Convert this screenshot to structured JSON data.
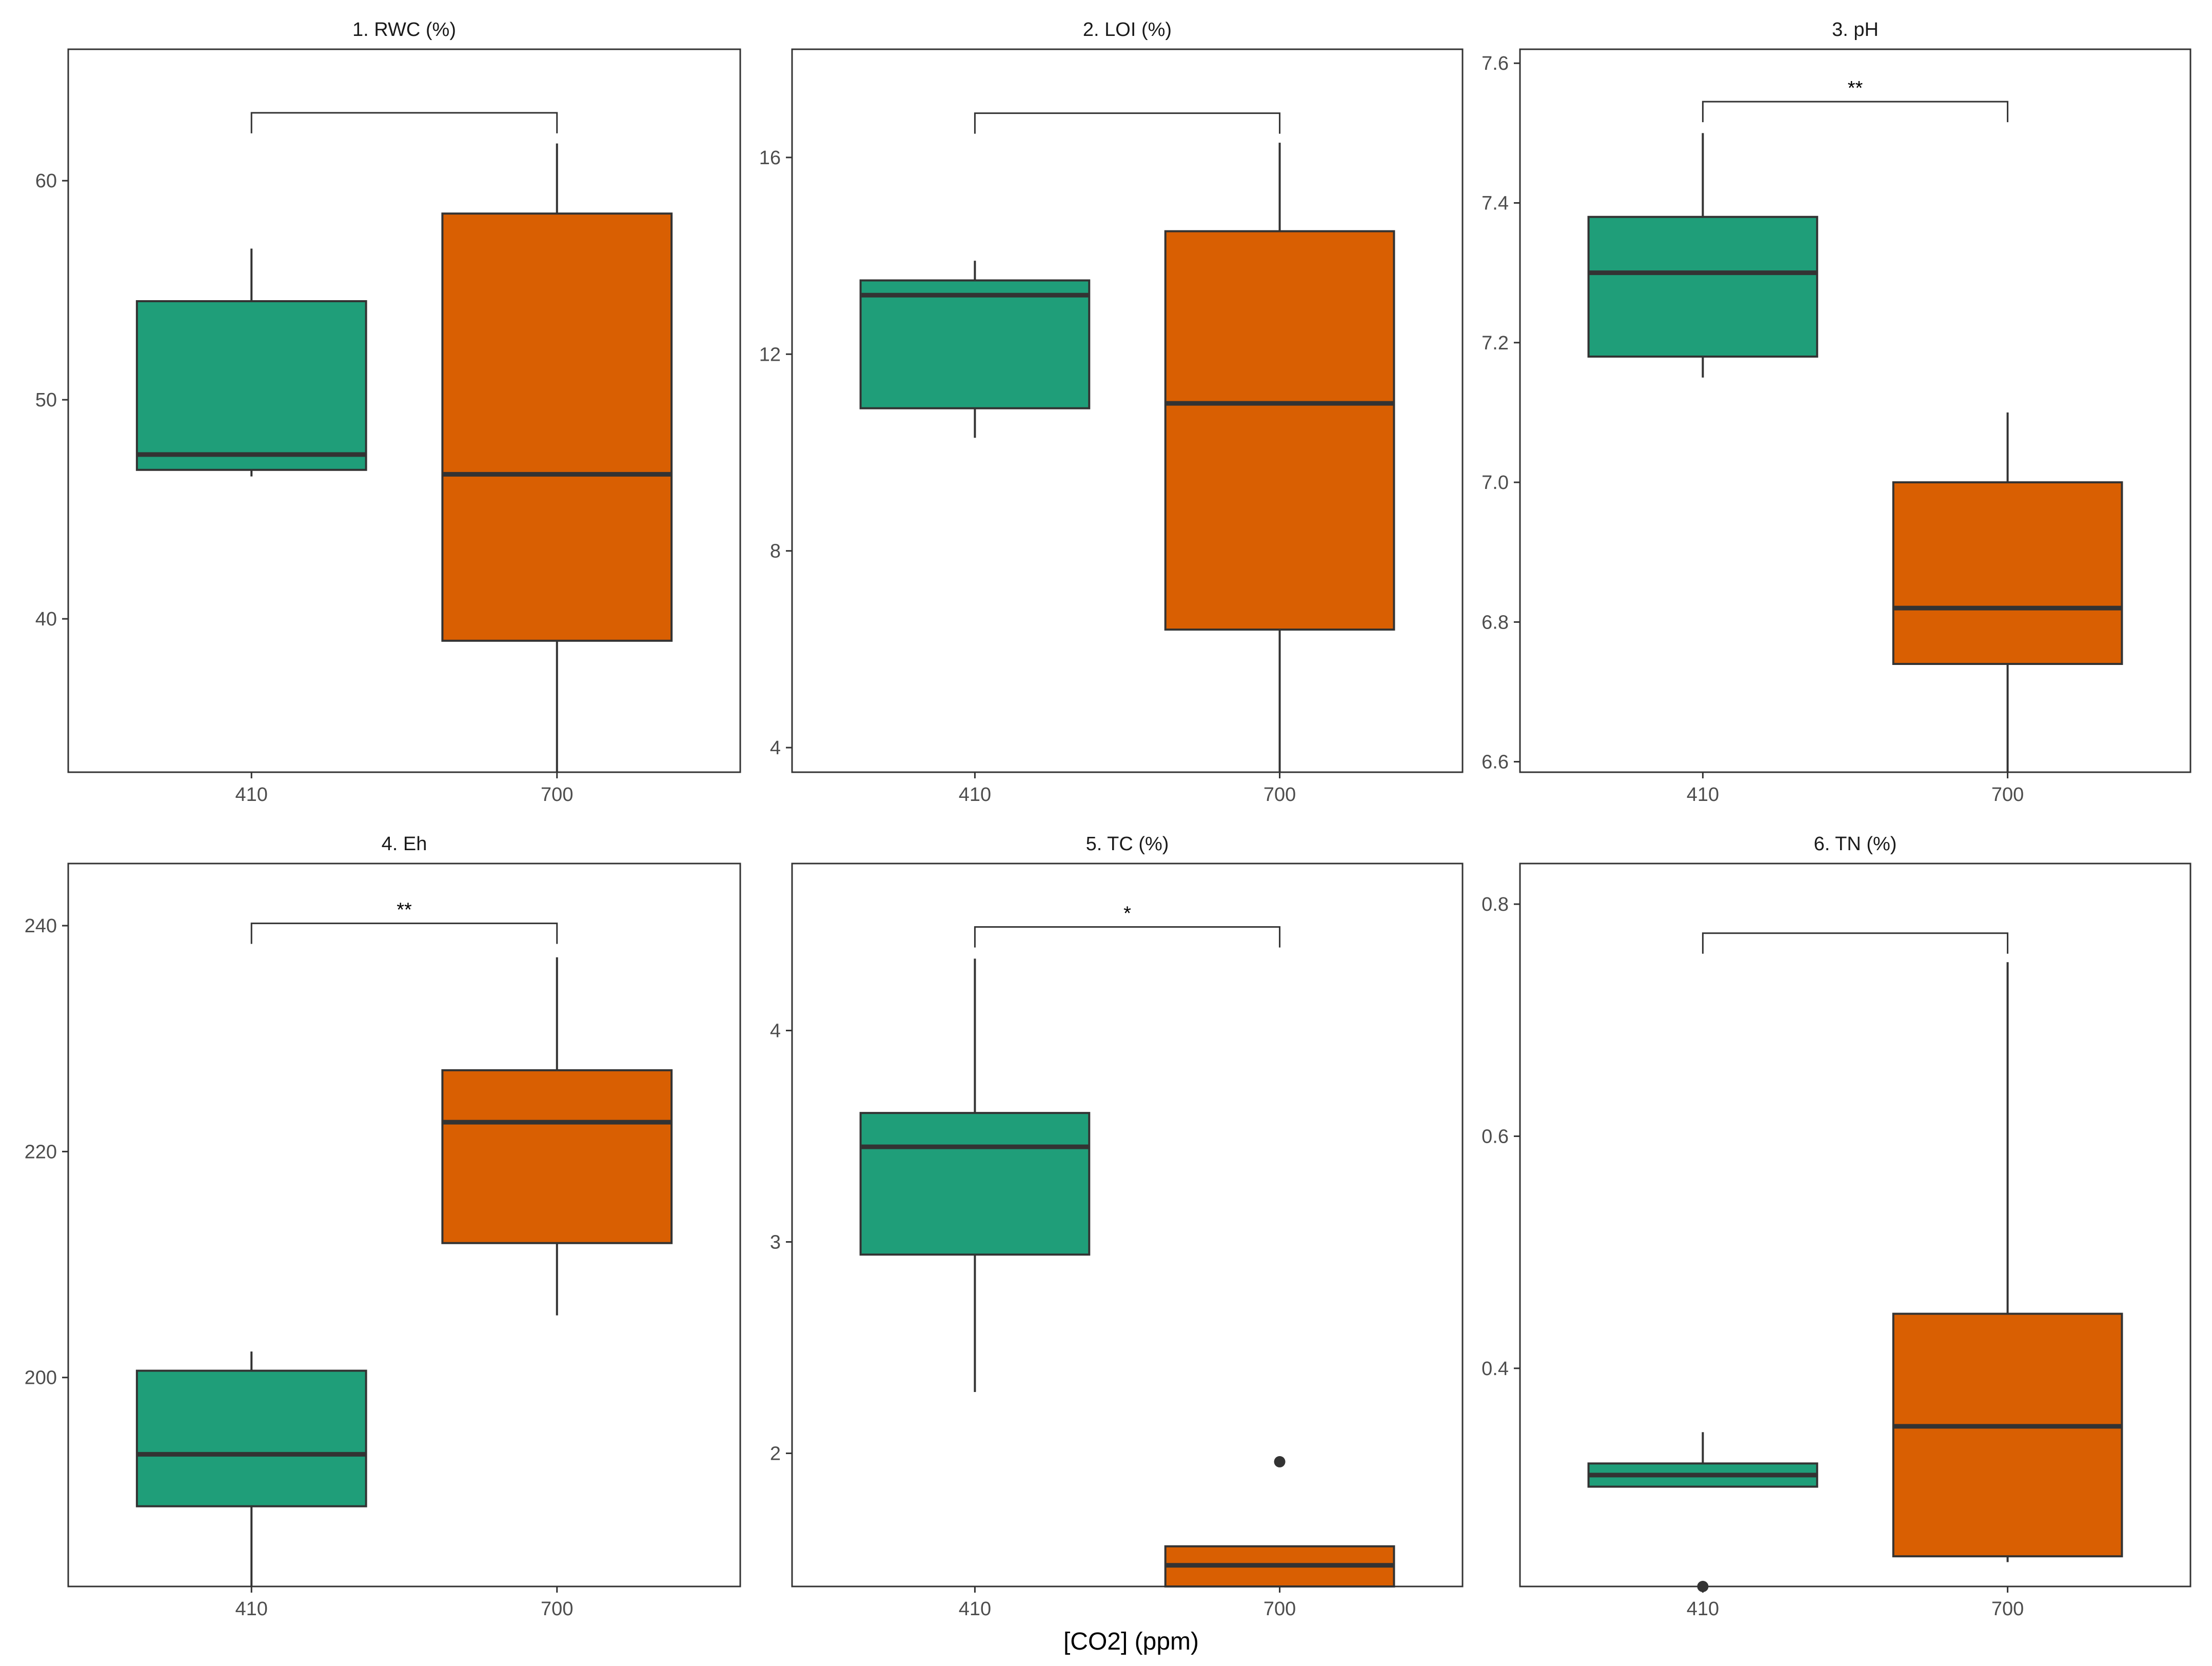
{
  "figure": {
    "xlabel": "[CO2] (ppm)",
    "colors": {
      "410": "#1f9e79",
      "700": "#d95f02",
      "line": "#333333",
      "axis": "#4d4d4d",
      "frame": "#333333"
    }
  },
  "chart_data": [
    {
      "type": "box",
      "title": "1. RWC (%)",
      "categories": [
        "410",
        "700"
      ],
      "ylim": [
        33,
        66
      ],
      "yticks": [
        40,
        50,
        60
      ],
      "ytick_labels": [
        "40",
        "50",
        "60"
      ],
      "boxes": [
        {
          "group": "410",
          "whisker_low": 46.5,
          "q1": 46.8,
          "median": 47.5,
          "q3": 54.5,
          "whisker_high": 56.9,
          "outliers": []
        },
        {
          "group": "700",
          "whisker_low": 33,
          "q1": 39,
          "median": 46.6,
          "q3": 58.5,
          "whisker_high": 61.7,
          "outliers": []
        }
      ],
      "bracket": {
        "y": 63.1,
        "label": ""
      }
    },
    {
      "type": "box",
      "title": "2. LOI (%)",
      "categories": [
        "410",
        "700"
      ],
      "ylim": [
        3.5,
        18.2
      ],
      "yticks": [
        4,
        8,
        12,
        16
      ],
      "ytick_labels": [
        "4",
        "8",
        "12",
        "16"
      ],
      "boxes": [
        {
          "group": "410",
          "whisker_low": 10.3,
          "q1": 10.9,
          "median": 13.2,
          "q3": 13.5,
          "whisker_high": 13.9,
          "outliers": []
        },
        {
          "group": "700",
          "whisker_low": 3.5,
          "q1": 6.4,
          "median": 11.0,
          "q3": 14.5,
          "whisker_high": 16.3,
          "outliers": []
        }
      ],
      "bracket": {
        "y": 16.9,
        "label": ""
      }
    },
    {
      "type": "box",
      "title": "3. pH",
      "categories": [
        "410",
        "700"
      ],
      "ylim": [
        6.585,
        7.62
      ],
      "yticks": [
        6.6,
        6.8,
        7.0,
        7.2,
        7.4,
        7.6
      ],
      "ytick_labels": [
        "6.6",
        "6.8",
        "7.0",
        "7.2",
        "7.4",
        "7.6"
      ],
      "boxes": [
        {
          "group": "410",
          "whisker_low": 7.15,
          "q1": 7.18,
          "median": 7.3,
          "q3": 7.38,
          "whisker_high": 7.5,
          "outliers": []
        },
        {
          "group": "700",
          "whisker_low": 6.585,
          "q1": 6.74,
          "median": 6.82,
          "q3": 7.0,
          "whisker_high": 7.1,
          "outliers": []
        }
      ],
      "bracket": {
        "y": 7.545,
        "label": "**"
      }
    },
    {
      "type": "box",
      "title": "4. Eh",
      "categories": [
        "410",
        "700"
      ],
      "ylim": [
        181.5,
        245.5
      ],
      "yticks": [
        200,
        220,
        240
      ],
      "ytick_labels": [
        "200",
        "220",
        "240"
      ],
      "boxes": [
        {
          "group": "410",
          "whisker_low": 181.5,
          "q1": 188.6,
          "median": 193.2,
          "q3": 200.6,
          "whisker_high": 202.3,
          "outliers": []
        },
        {
          "group": "700",
          "whisker_low": 205.5,
          "q1": 211.9,
          "median": 222.6,
          "q3": 227.2,
          "whisker_high": 237.2,
          "outliers": []
        }
      ],
      "bracket": {
        "y": 240.2,
        "label": "**"
      }
    },
    {
      "type": "box",
      "title": "5. TC (%)",
      "categories": [
        "410",
        "700"
      ],
      "ylim": [
        1.37,
        4.79
      ],
      "yticks": [
        2,
        3,
        4
      ],
      "ytick_labels": [
        "2",
        "3",
        "4"
      ],
      "boxes": [
        {
          "group": "410",
          "whisker_low": 2.29,
          "q1": 2.94,
          "median": 3.45,
          "q3": 3.61,
          "whisker_high": 4.34,
          "outliers": []
        },
        {
          "group": "700",
          "whisker_low": 1.37,
          "q1": 1.37,
          "median": 1.47,
          "q3": 1.56,
          "whisker_high": 1.56,
          "outliers": [
            1.96
          ]
        }
      ],
      "bracket": {
        "y": 4.49,
        "label": "*"
      }
    },
    {
      "type": "box",
      "title": "6. TN (%)",
      "categories": [
        "410",
        "700"
      ],
      "ylim": [
        0.212,
        0.835
      ],
      "yticks": [
        0.4,
        0.6,
        0.8
      ],
      "ytick_labels": [
        "0.4",
        "0.6",
        "0.8"
      ],
      "boxes": [
        {
          "group": "410",
          "whisker_low": 0.298,
          "q1": 0.298,
          "median": 0.308,
          "q3": 0.318,
          "whisker_high": 0.345,
          "outliers": [
            0.212
          ]
        },
        {
          "group": "700",
          "whisker_low": 0.233,
          "q1": 0.238,
          "median": 0.35,
          "q3": 0.447,
          "whisker_high": 0.75,
          "outliers": []
        }
      ],
      "bracket": {
        "y": 0.775,
        "label": ""
      }
    }
  ]
}
